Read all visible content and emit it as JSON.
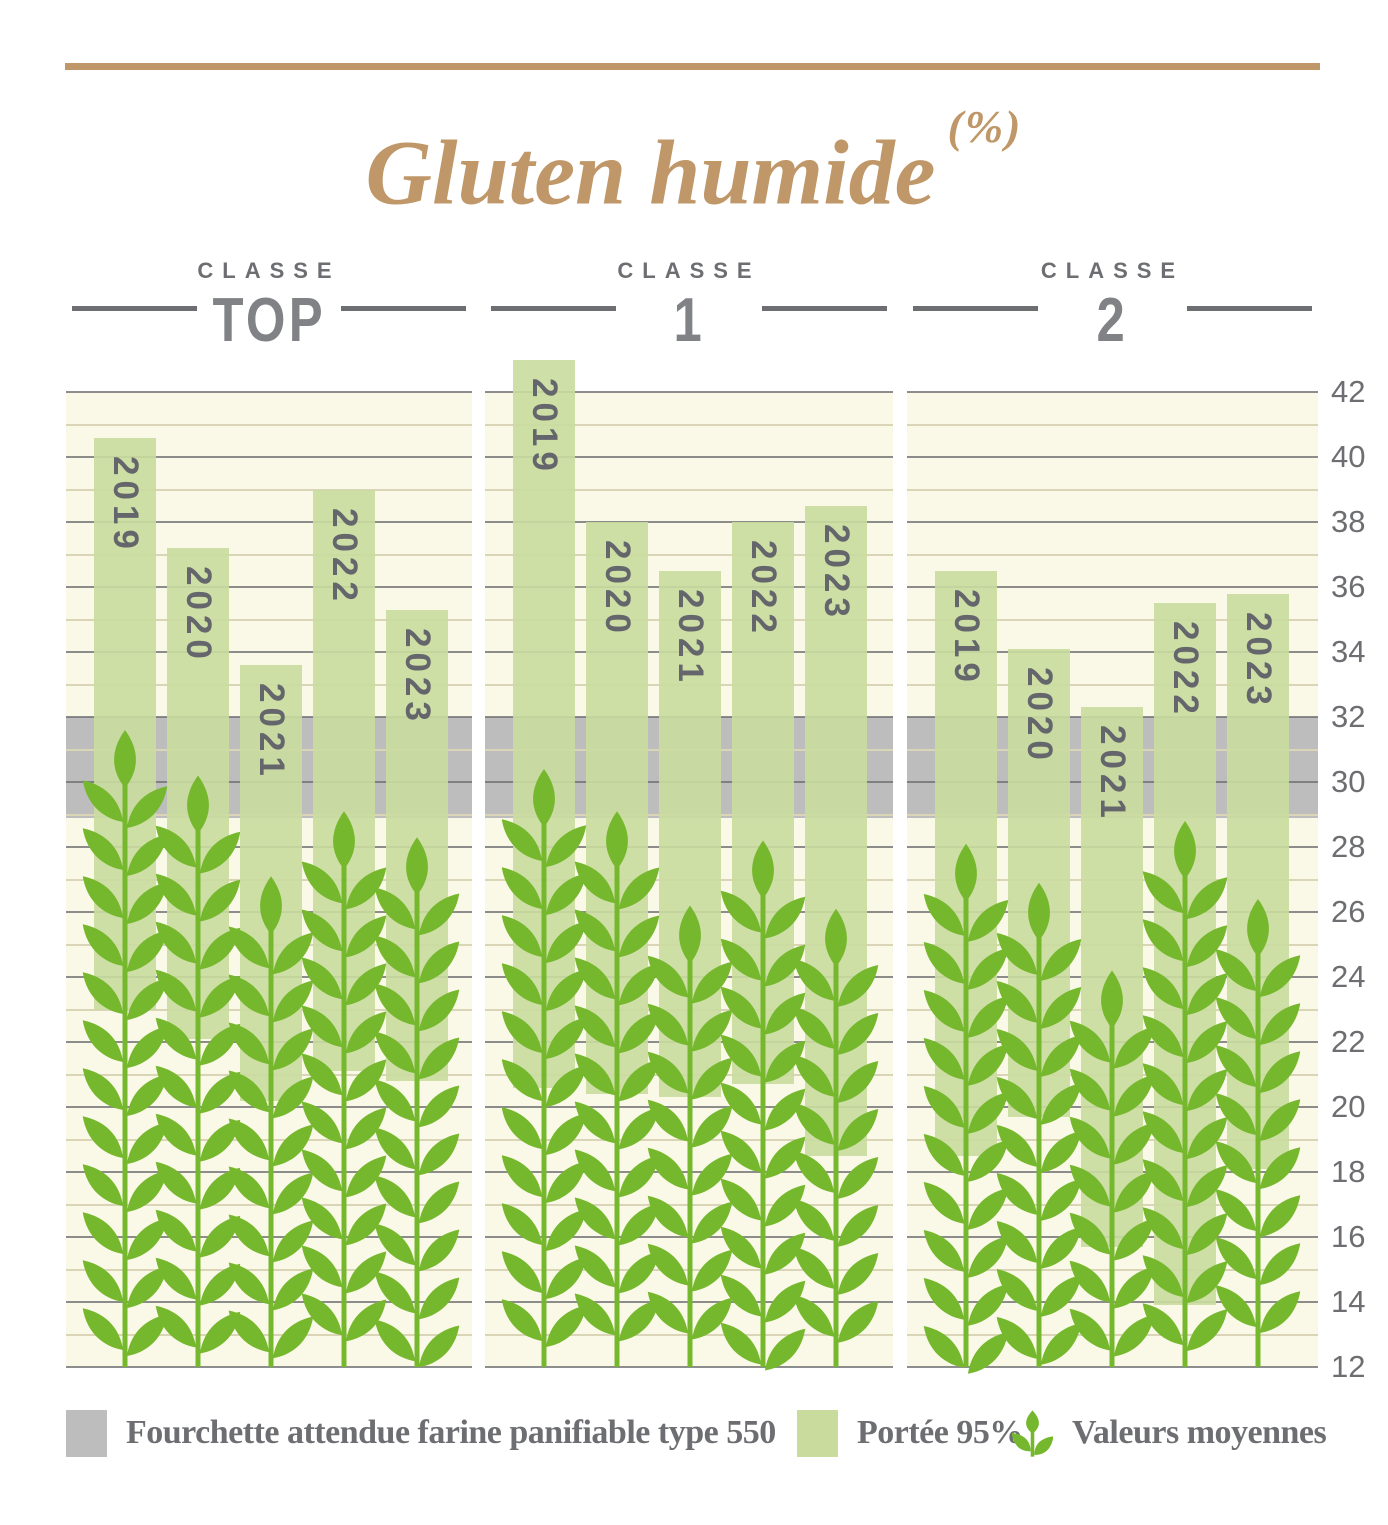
{
  "title": {
    "text": "Gluten humide",
    "unit": "(%)"
  },
  "group_label": "CLASSE",
  "legend": {
    "items": [
      {
        "icon": "band-swatch",
        "label": "Fourchette attendue farine panifiable type 550"
      },
      {
        "icon": "bar-swatch",
        "label": "Portée 95%"
      },
      {
        "icon": "wheat-icon",
        "label": "Valeurs moyennes"
      }
    ]
  },
  "colors": {
    "accent_tan": "#bf9768",
    "bar_green": "#c9dc9e",
    "wheat_green": "#76b82d",
    "band_gray": "#bdbdbe",
    "text_gray": "#6d6e71",
    "plot_cream": "#faf8e6"
  },
  "chart_data": {
    "type": "bar",
    "title": "Gluten humide (%)",
    "ylabel": "",
    "y_axis": {
      "min": 12,
      "max": 42,
      "label_step": 2,
      "gridline_step": 1
    },
    "band": {
      "label": "Fourchette attendue farine panifiable type 550",
      "from": 29,
      "to": 32
    },
    "bar_meaning": "Portée 95%",
    "marker_meaning": "Valeurs moyennes",
    "groups": [
      {
        "name": "TOP",
        "bars": [
          {
            "year": "2019",
            "low": 23.0,
            "high": 40.6,
            "mean": 31.6
          },
          {
            "year": "2020",
            "low": 22.1,
            "high": 37.2,
            "mean": 30.2
          },
          {
            "year": "2021",
            "low": 20.2,
            "high": 33.6,
            "mean": 27.1
          },
          {
            "year": "2022",
            "low": 21.1,
            "high": 39.0,
            "mean": 29.1
          },
          {
            "year": "2023",
            "low": 20.8,
            "high": 35.3,
            "mean": 28.3
          }
        ]
      },
      {
        "name": "1",
        "bars": [
          {
            "year": "2019",
            "low": 20.6,
            "high": 43.0,
            "mean": 30.4
          },
          {
            "year": "2020",
            "low": 20.4,
            "high": 38.0,
            "mean": 29.1
          },
          {
            "year": "2021",
            "low": 20.3,
            "high": 36.5,
            "mean": 26.2
          },
          {
            "year": "2022",
            "low": 20.7,
            "high": 38.0,
            "mean": 28.2
          },
          {
            "year": "2023",
            "low": 18.5,
            "high": 38.5,
            "mean": 26.1
          }
        ]
      },
      {
        "name": "2",
        "bars": [
          {
            "year": "2019",
            "low": 18.5,
            "high": 36.5,
            "mean": 28.1
          },
          {
            "year": "2020",
            "low": 19.7,
            "high": 34.1,
            "mean": 26.9
          },
          {
            "year": "2021",
            "low": 15.7,
            "high": 32.3,
            "mean": 24.2
          },
          {
            "year": "2022",
            "low": 13.9,
            "high": 35.5,
            "mean": 28.8
          },
          {
            "year": "2023",
            "low": 18.1,
            "high": 35.8,
            "mean": 26.4
          }
        ]
      }
    ]
  }
}
